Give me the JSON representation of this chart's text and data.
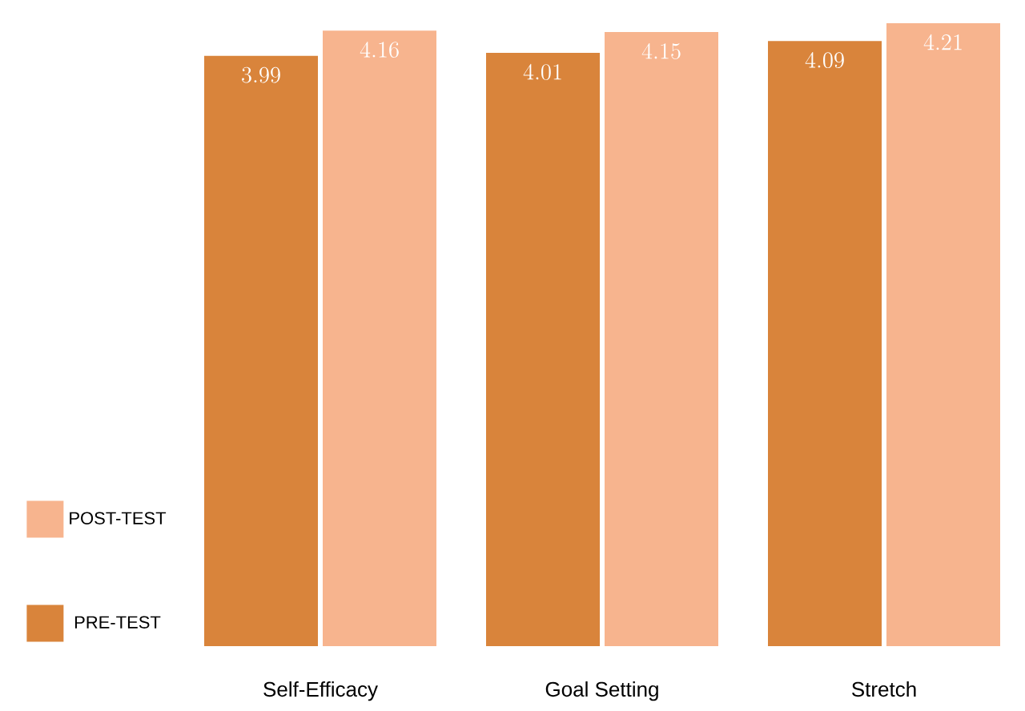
{
  "chart_data": {
    "type": "bar",
    "categories": [
      "Self-Efficacy",
      "Goal Setting",
      "Stretch"
    ],
    "series": [
      {
        "name": "PRE-TEST",
        "color": "#d9843b",
        "values": [
          3.99,
          4.01,
          4.09
        ]
      },
      {
        "name": "POST-TEST",
        "color": "#f7b48e",
        "values": [
          4.16,
          4.15,
          4.21
        ]
      }
    ],
    "data_labels": true,
    "legend": "left"
  }
}
